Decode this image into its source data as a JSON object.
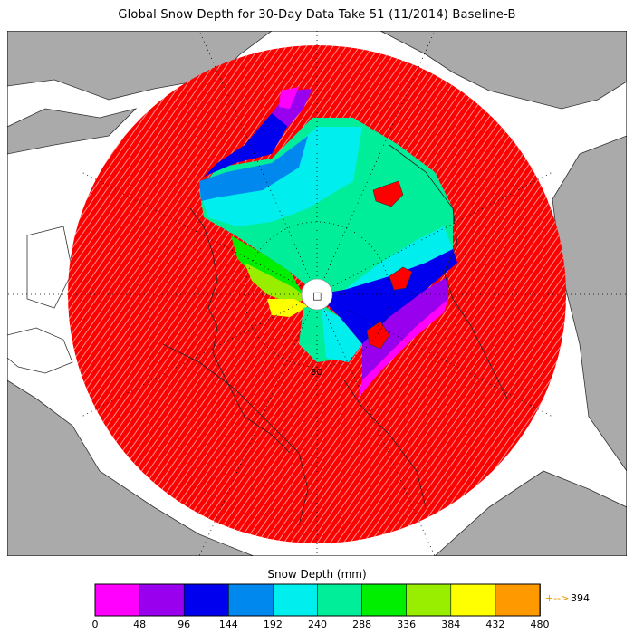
{
  "title": "Global Snow Depth for 30-Day Data Take 51 (11/2014) Baseline-B",
  "map": {
    "projection": "north polar stereographic",
    "latitude_label": "80",
    "pole_marker": "□",
    "land_color": "#aaaaaa",
    "ocean_color": "#ffffff",
    "no_snow_color": "#ff0000"
  },
  "colorbar": {
    "label": "Snow Depth (mm)",
    "ticks": [
      "0",
      "48",
      "96",
      "144",
      "192",
      "240",
      "288",
      "336",
      "384",
      "432",
      "480"
    ],
    "colors": [
      "#ff00ff",
      "#9900ee",
      "#0000ee",
      "#0088ee",
      "#00eeee",
      "#00ee99",
      "#00ee00",
      "#99ee00",
      "#ffff00",
      "#ff9900"
    ],
    "overflow_arrow": "+-->",
    "overflow_value": "394"
  }
}
